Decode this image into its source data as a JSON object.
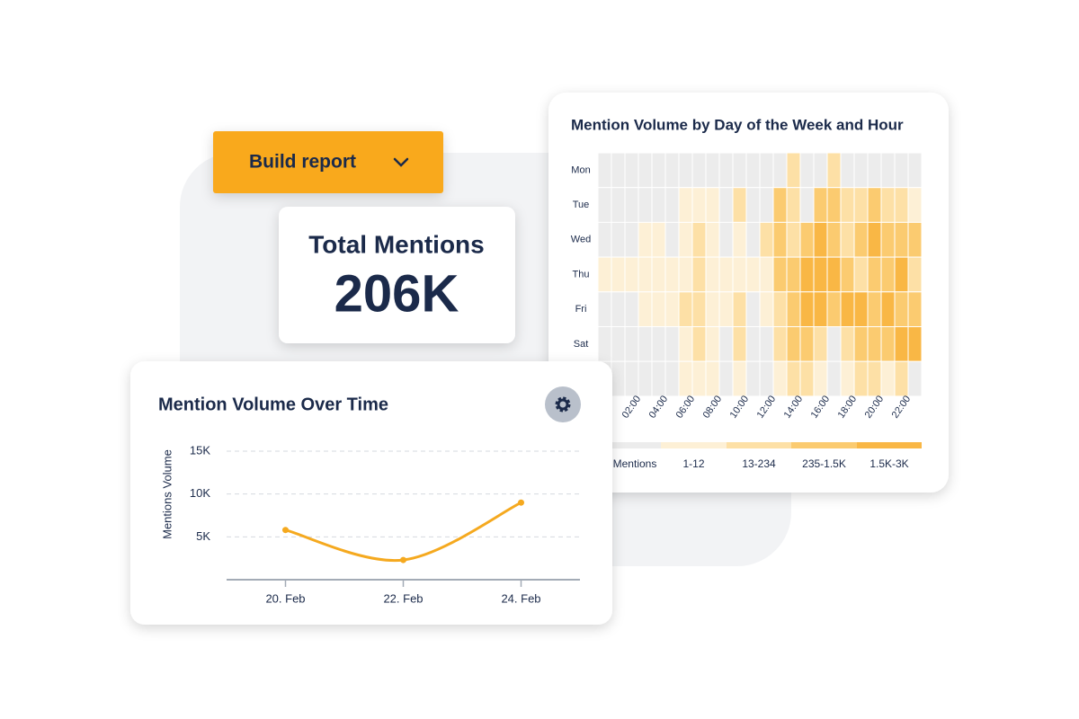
{
  "button": {
    "label": "Build report"
  },
  "kpi": {
    "title": "Total Mentions",
    "value": "206K"
  },
  "chart_data": [
    {
      "type": "heatmap",
      "title": "Mention Volume by Day of the Week and Hour",
      "categories": [
        null,
        null,
        "02:00",
        null,
        "04:00",
        null,
        "06:00",
        null,
        "08:00",
        null,
        "10:00",
        null,
        "12:00",
        null,
        "14:00",
        null,
        "16:00",
        null,
        "18:00",
        null,
        "20:00",
        null,
        "22:00",
        null
      ],
      "rows": [
        "Mon",
        "Tue",
        "Wed",
        "Thu",
        "Fri",
        "Sat",
        null
      ],
      "values": [
        [
          0,
          0,
          0,
          0,
          0,
          0,
          0,
          0,
          0,
          0,
          0,
          0,
          0,
          0,
          2,
          0,
          0,
          2,
          0,
          0,
          0,
          0,
          0,
          0
        ],
        [
          0,
          0,
          0,
          0,
          0,
          0,
          1,
          1,
          1,
          0,
          2,
          0,
          0,
          3,
          2,
          0,
          3,
          3,
          2,
          2,
          3,
          2,
          2,
          1
        ],
        [
          0,
          0,
          0,
          1,
          1,
          0,
          1,
          2,
          1,
          0,
          1,
          0,
          2,
          3,
          2,
          3,
          4,
          3,
          2,
          3,
          4,
          3,
          3,
          3
        ],
        [
          1,
          1,
          1,
          1,
          1,
          1,
          1,
          2,
          1,
          1,
          1,
          1,
          1,
          3,
          3,
          4,
          4,
          4,
          3,
          2,
          3,
          3,
          4,
          2
        ],
        [
          0,
          0,
          0,
          1,
          1,
          1,
          2,
          2,
          1,
          1,
          2,
          0,
          1,
          2,
          3,
          4,
          4,
          3,
          4,
          4,
          3,
          4,
          3,
          3
        ],
        [
          0,
          0,
          0,
          0,
          0,
          0,
          1,
          2,
          1,
          0,
          2,
          0,
          0,
          2,
          3,
          3,
          2,
          0,
          2,
          3,
          3,
          3,
          4,
          4
        ],
        [
          0,
          0,
          0,
          0,
          0,
          0,
          1,
          1,
          1,
          0,
          1,
          0,
          0,
          1,
          2,
          2,
          1,
          0,
          1,
          2,
          2,
          1,
          2,
          0
        ]
      ],
      "legend": [
        {
          "label": "Mentions",
          "color": "#ececec"
        },
        {
          "label": "1-12",
          "color": "#fdf0d6"
        },
        {
          "label": "13-234",
          "color": "#fde0a6"
        },
        {
          "label": "235-1.5K",
          "color": "#fbcb70"
        },
        {
          "label": "1.5K-3K",
          "color": "#f9b745"
        }
      ]
    },
    {
      "type": "line",
      "title": "Mention Volume Over Time",
      "y_label": "Mentions Volume",
      "categories": [
        "20. Feb",
        "22. Feb",
        "24. Feb"
      ],
      "series": [
        {
          "color": "#f5a91f",
          "values": [
            5800,
            2300,
            9000
          ]
        }
      ],
      "ylim": [
        0,
        15000
      ],
      "yticks": [
        {
          "value": 5000,
          "label": "5K"
        },
        {
          "value": 10000,
          "label": "10K"
        },
        {
          "value": 15000,
          "label": "15K"
        }
      ],
      "grid": true
    }
  ]
}
